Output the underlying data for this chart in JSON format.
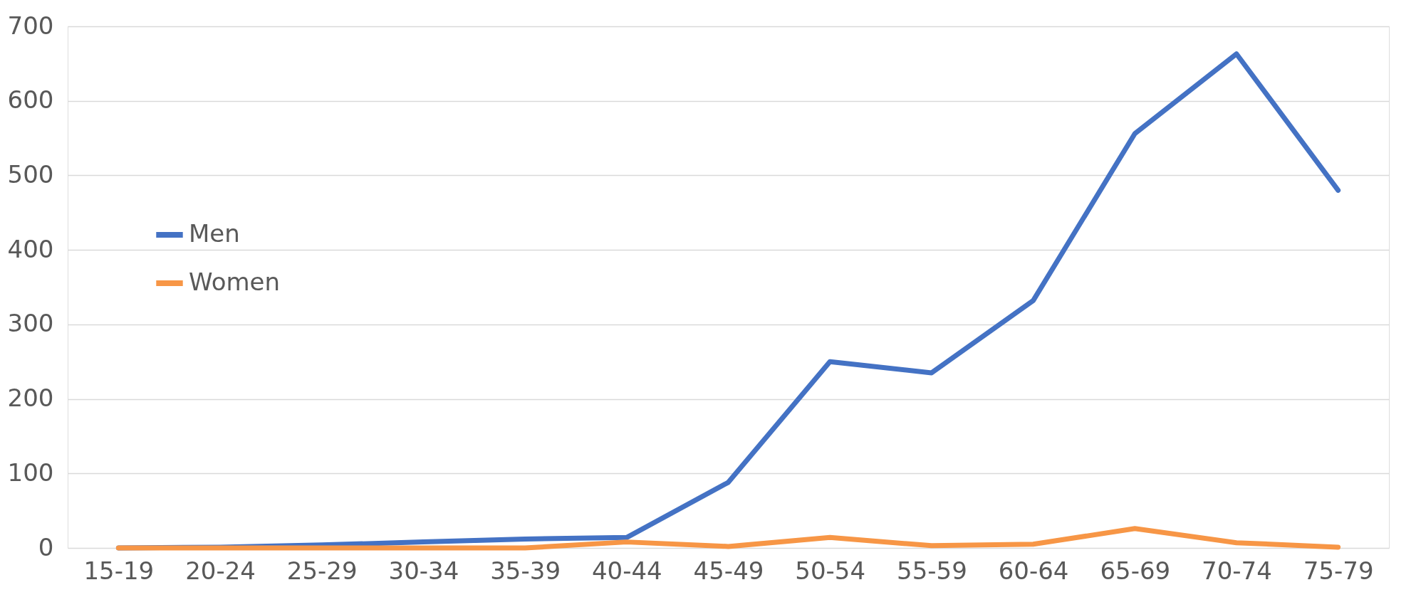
{
  "chart_data": {
    "type": "line",
    "categories": [
      "15-19",
      "20-24",
      "25-29",
      "30-34",
      "35-39",
      "40-44",
      "45-49",
      "50-54",
      "55-59",
      "60-64",
      "65-69",
      "70-74",
      "75-79"
    ],
    "series": [
      {
        "name": "Men",
        "color": "#4472c4",
        "values": [
          0,
          1,
          4,
          8,
          12,
          14,
          88,
          250,
          235,
          332,
          556,
          663,
          480
        ]
      },
      {
        "name": "Women",
        "color": "#f79646",
        "values": [
          0,
          0,
          0,
          0,
          0,
          8,
          2,
          14,
          3,
          5,
          26,
          7,
          1
        ]
      }
    ],
    "ylim": [
      0,
      700
    ],
    "yticks": [
      0,
      100,
      200,
      300,
      400,
      500,
      600,
      700
    ],
    "grid": "y",
    "legend": "left",
    "marker": "none",
    "line_style": "solid"
  }
}
